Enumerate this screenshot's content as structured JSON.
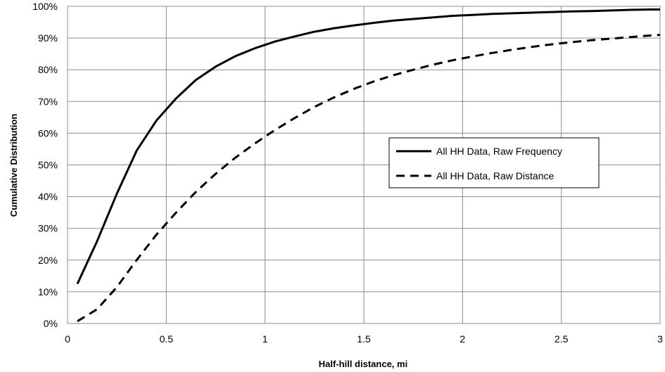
{
  "chart_data": {
    "type": "line",
    "xlabel": "Half-hill distance, mi",
    "ylabel": "Cumulative Distribution",
    "xlim": [
      0,
      3
    ],
    "ylim": [
      0,
      100
    ],
    "x_ticks": [
      "0",
      "0.5",
      "1",
      "1.5",
      "2",
      "2.5",
      "3"
    ],
    "y_ticks": [
      "0%",
      "10%",
      "20%",
      "30%",
      "40%",
      "50%",
      "60%",
      "70%",
      "80%",
      "90%",
      "100%"
    ],
    "grid": true,
    "legend_position": "center-right",
    "series": [
      {
        "name": "All HH Data, Raw Frequency",
        "style": "solid",
        "color": "#000000",
        "x": [
          0.05,
          0.15,
          0.25,
          0.35,
          0.45,
          0.55,
          0.65,
          0.75,
          0.85,
          0.95,
          1.05,
          1.15,
          1.25,
          1.35,
          1.45,
          1.55,
          1.65,
          1.75,
          1.85,
          1.95,
          2.05,
          2.15,
          2.25,
          2.35,
          2.45,
          2.55,
          2.65,
          2.75,
          2.85,
          2.95,
          3.0
        ],
        "y": [
          12.5,
          26,
          41,
          54.5,
          64,
          71,
          76.8,
          81,
          84.3,
          86.8,
          88.9,
          90.5,
          92,
          93.1,
          94,
          94.8,
          95.5,
          96,
          96.5,
          97,
          97.3,
          97.6,
          97.8,
          98,
          98.2,
          98.4,
          98.5,
          98.7,
          98.9,
          99,
          99
        ]
      },
      {
        "name": "All HH Data, Raw Distance",
        "style": "dashed",
        "color": "#000000",
        "x": [
          0.05,
          0.15,
          0.25,
          0.35,
          0.45,
          0.55,
          0.65,
          0.75,
          0.85,
          0.95,
          1.05,
          1.15,
          1.25,
          1.35,
          1.45,
          1.55,
          1.65,
          1.75,
          1.85,
          1.95,
          2.05,
          2.15,
          2.25,
          2.35,
          2.45,
          2.55,
          2.65,
          2.75,
          2.85,
          2.95,
          3.0
        ],
        "y": [
          0.7,
          4.5,
          11.5,
          20,
          28,
          35,
          41.5,
          47.2,
          52.3,
          56.8,
          61,
          64.8,
          68.3,
          71.3,
          74,
          76.3,
          78.3,
          80,
          81.6,
          83,
          84.2,
          85.3,
          86.3,
          87.2,
          88,
          88.7,
          89.3,
          89.8,
          90.3,
          90.8,
          91
        ]
      }
    ]
  }
}
